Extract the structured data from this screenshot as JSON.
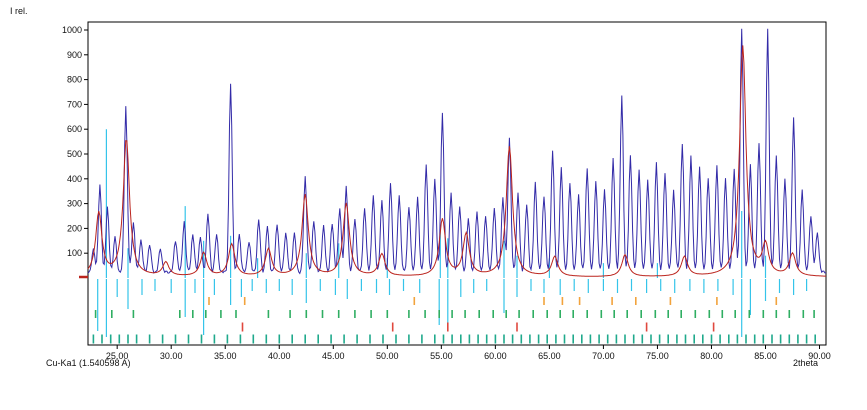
{
  "labels": {
    "y_title": "I rel.",
    "x_title": "2theta",
    "anode": "Cu-Ka1 (1.540598 A)"
  },
  "chart_data": {
    "type": "line",
    "title": "",
    "xlabel": "2theta",
    "ylabel": "I rel.",
    "xlim": [
      22.3,
      90.6
    ],
    "ylim": [
      0,
      1000
    ],
    "grid": false,
    "legend": "none",
    "x_tick_values": [
      25,
      30,
      35,
      40,
      45,
      50,
      55,
      60,
      65,
      70,
      75,
      80,
      85,
      90
    ],
    "x_ticks": [
      "25.00",
      "30.00",
      "35.00",
      "40.00",
      "45.00",
      "50.00",
      "55.00",
      "60.00",
      "65.00",
      "70.00",
      "75.00",
      "80.00",
      "85.00",
      "90.00"
    ],
    "y_ticks": [
      100,
      200,
      300,
      400,
      500,
      600,
      700,
      800,
      900,
      1000
    ],
    "series": [
      {
        "name": "reference-sticks-cyan",
        "color": "#35c4ea",
        "style": "sticks",
        "peaks": [
          [
            24.0,
            600
          ],
          [
            26.0,
            120
          ],
          [
            31.3,
            290
          ],
          [
            33.0,
            150
          ],
          [
            35.5,
            170
          ],
          [
            38.0,
            80
          ],
          [
            42.5,
            100
          ],
          [
            45.5,
            140
          ],
          [
            50.0,
            80
          ],
          [
            54.9,
            200
          ],
          [
            55.6,
            160
          ],
          [
            60.8,
            150
          ],
          [
            62.0,
            90
          ],
          [
            65.0,
            80
          ],
          [
            70.0,
            60
          ],
          [
            75.0,
            60
          ],
          [
            82.8,
            270
          ],
          [
            85.0,
            90
          ]
        ]
      },
      {
        "name": "measured-pattern-blue",
        "color": "#332ba8",
        "style": "profile",
        "shape": "gauss",
        "baseline": 15,
        "noise": true,
        "peak_width": 0.14,
        "peaks": [
          [
            22.8,
            90
          ],
          [
            23.4,
            350
          ],
          [
            24.1,
            260
          ],
          [
            24.8,
            140
          ],
          [
            25.8,
            670
          ],
          [
            26.5,
            200
          ],
          [
            27.2,
            130
          ],
          [
            28.0,
            110
          ],
          [
            29.0,
            95
          ],
          [
            30.4,
            130
          ],
          [
            31.2,
            205
          ],
          [
            32.0,
            150
          ],
          [
            32.7,
            140
          ],
          [
            33.4,
            235
          ],
          [
            34.2,
            150
          ],
          [
            35.5,
            760
          ],
          [
            36.3,
            150
          ],
          [
            37.2,
            125
          ],
          [
            38.1,
            210
          ],
          [
            38.9,
            185
          ],
          [
            39.8,
            195
          ],
          [
            40.6,
            160
          ],
          [
            41.4,
            155
          ],
          [
            42.4,
            385
          ],
          [
            43.2,
            210
          ],
          [
            44.1,
            185
          ],
          [
            44.9,
            195
          ],
          [
            45.6,
            260
          ],
          [
            46.2,
            345
          ],
          [
            47.0,
            215
          ],
          [
            47.9,
            260
          ],
          [
            48.7,
            310
          ],
          [
            49.5,
            285
          ],
          [
            50.3,
            360
          ],
          [
            51.1,
            310
          ],
          [
            52.0,
            265
          ],
          [
            52.8,
            300
          ],
          [
            53.6,
            430
          ],
          [
            54.4,
            380
          ],
          [
            55.1,
            645
          ],
          [
            55.9,
            320
          ],
          [
            56.7,
            265
          ],
          [
            57.5,
            215
          ],
          [
            58.3,
            240
          ],
          [
            59.1,
            230
          ],
          [
            59.9,
            260
          ],
          [
            60.7,
            300
          ],
          [
            61.3,
            540
          ],
          [
            62.1,
            320
          ],
          [
            62.9,
            270
          ],
          [
            63.7,
            360
          ],
          [
            64.5,
            310
          ],
          [
            65.3,
            490
          ],
          [
            66.1,
            420
          ],
          [
            66.9,
            360
          ],
          [
            67.7,
            310
          ],
          [
            68.5,
            420
          ],
          [
            69.3,
            370
          ],
          [
            70.1,
            330
          ],
          [
            70.9,
            460
          ],
          [
            71.7,
            710
          ],
          [
            72.5,
            470
          ],
          [
            73.3,
            420
          ],
          [
            74.1,
            370
          ],
          [
            74.9,
            440
          ],
          [
            75.7,
            400
          ],
          [
            76.5,
            330
          ],
          [
            77.3,
            520
          ],
          [
            78.1,
            470
          ],
          [
            78.9,
            420
          ],
          [
            79.7,
            380
          ],
          [
            80.5,
            430
          ],
          [
            81.3,
            380
          ],
          [
            82.1,
            420
          ],
          [
            82.8,
            1000
          ],
          [
            83.6,
            430
          ],
          [
            84.4,
            520
          ],
          [
            85.2,
            990
          ],
          [
            86.0,
            470
          ],
          [
            86.8,
            380
          ],
          [
            87.6,
            620
          ],
          [
            88.4,
            330
          ],
          [
            89.2,
            230
          ],
          [
            89.8,
            160
          ]
        ]
      },
      {
        "name": "reference-pattern-red",
        "color": "#bb241d",
        "style": "profile",
        "shape": "lorentz",
        "baseline": 4,
        "noise": false,
        "peak_width": 0.35,
        "peaks": [
          [
            23.3,
            255
          ],
          [
            25.85,
            555
          ],
          [
            29.5,
            55
          ],
          [
            33.0,
            95
          ],
          [
            35.6,
            130
          ],
          [
            39.0,
            110
          ],
          [
            42.4,
            330
          ],
          [
            46.2,
            295
          ],
          [
            49.5,
            90
          ],
          [
            55.1,
            230
          ],
          [
            57.3,
            170
          ],
          [
            61.3,
            525
          ],
          [
            65.5,
            80
          ],
          [
            72.0,
            90
          ],
          [
            77.5,
            80
          ],
          [
            82.9,
            930
          ],
          [
            85.0,
            120
          ],
          [
            87.5,
            90
          ]
        ]
      }
    ],
    "phase_marker_rows": [
      {
        "name": "cyan-stick-row",
        "color": "#35c4ea",
        "style": "hanging",
        "ticks": [
          [
            23.2,
            52
          ],
          [
            24.0,
            58
          ],
          [
            25.0,
            18
          ],
          [
            26.0,
            30
          ],
          [
            27.3,
            16
          ],
          [
            28.5,
            12
          ],
          [
            30.0,
            14
          ],
          [
            31.3,
            38
          ],
          [
            32.2,
            14
          ],
          [
            33.0,
            56
          ],
          [
            34.0,
            16
          ],
          [
            35.5,
            26
          ],
          [
            36.5,
            18
          ],
          [
            37.5,
            12
          ],
          [
            38.8,
            14
          ],
          [
            40.0,
            12
          ],
          [
            41.2,
            16
          ],
          [
            42.5,
            24
          ],
          [
            43.8,
            12
          ],
          [
            45.2,
            16
          ],
          [
            46.3,
            20
          ],
          [
            47.6,
            12
          ],
          [
            49.0,
            14
          ],
          [
            50.2,
            16
          ],
          [
            51.5,
            12
          ],
          [
            53.0,
            14
          ],
          [
            54.8,
            46
          ],
          [
            55.6,
            52
          ],
          [
            56.8,
            18
          ],
          [
            58.0,
            14
          ],
          [
            59.2,
            12
          ],
          [
            60.8,
            34
          ],
          [
            62.0,
            18
          ],
          [
            63.3,
            12
          ],
          [
            64.5,
            14
          ],
          [
            66.0,
            16
          ],
          [
            67.3,
            12
          ],
          [
            68.6,
            14
          ],
          [
            70.0,
            12
          ],
          [
            71.3,
            14
          ],
          [
            72.6,
            12
          ],
          [
            74.0,
            14
          ],
          [
            75.3,
            12
          ],
          [
            76.6,
            14
          ],
          [
            78.0,
            12
          ],
          [
            79.3,
            14
          ],
          [
            80.6,
            12
          ],
          [
            82.0,
            16
          ],
          [
            82.8,
            58
          ],
          [
            83.6,
            36
          ],
          [
            85.0,
            22
          ],
          [
            86.3,
            14
          ],
          [
            87.6,
            16
          ],
          [
            88.8,
            12
          ]
        ]
      },
      {
        "name": "orange-tick-row",
        "color": "#f2a33c",
        "style": "ticks",
        "height": 8,
        "positions": [
          33.5,
          36.8,
          52.5,
          64.5,
          66.2,
          67.8,
          70.8,
          73.0,
          76.2,
          80.5,
          86.0
        ]
      },
      {
        "name": "green-tick-row",
        "color": "#2fae62",
        "style": "ticks",
        "height": 8,
        "positions": [
          23.0,
          24.5,
          26.5,
          30.8,
          32.0,
          33.2,
          34.6,
          36.0,
          39.0,
          41.0,
          42.5,
          44.0,
          45.5,
          47.0,
          48.5,
          50.0,
          52.0,
          53.5,
          54.8,
          56.0,
          57.2,
          58.5,
          59.8,
          61.0,
          62.2,
          63.5,
          64.8,
          66.0,
          67.2,
          68.5,
          69.8,
          71.0,
          72.2,
          73.5,
          74.8,
          76.0,
          77.2,
          78.5,
          79.8,
          81.0,
          82.2,
          83.5,
          84.8,
          86.0,
          87.2,
          88.5,
          89.5
        ]
      },
      {
        "name": "red-tick-row",
        "color": "#e0483e",
        "style": "ticks",
        "height": 9,
        "positions": [
          36.6,
          50.5,
          55.6,
          62.0,
          74.0,
          80.2
        ]
      },
      {
        "name": "teal-tick-row",
        "color": "#1fa98c",
        "style": "ticks",
        "height": 9,
        "positions": [
          22.8,
          23.6,
          24.4,
          25.2,
          26.0,
          26.8,
          28.0,
          29.2,
          30.4,
          31.6,
          32.8,
          34.0,
          35.2,
          36.4,
          37.6,
          38.8,
          40.0,
          41.2,
          42.4,
          43.6,
          44.8,
          46.0,
          47.2,
          48.4,
          49.6,
          50.8,
          52.0,
          53.2,
          54.4,
          55.2,
          56.0,
          56.8,
          57.6,
          58.4,
          59.2,
          60.0,
          60.8,
          61.6,
          62.4,
          63.2,
          64.0,
          64.8,
          65.6,
          66.4,
          67.2,
          68.0,
          68.8,
          69.6,
          70.4,
          71.2,
          72.0,
          72.8,
          73.6,
          74.4,
          75.2,
          76.0,
          76.8,
          77.6,
          78.4,
          79.2,
          80.0,
          80.8,
          81.6,
          82.4,
          83.2,
          84.0,
          84.8,
          85.6,
          86.4,
          87.2,
          88.0,
          88.8,
          89.6
        ]
      }
    ]
  },
  "colors": {
    "axis": "#000000",
    "background": "#ffffff",
    "measured_blue": "#332ba8",
    "reference_red": "#bb241d",
    "reference_cyan": "#35c4ea",
    "marker_orange": "#f2a33c",
    "marker_green": "#2fae62",
    "marker_red": "#e0483e",
    "marker_teal": "#1fa98c"
  }
}
